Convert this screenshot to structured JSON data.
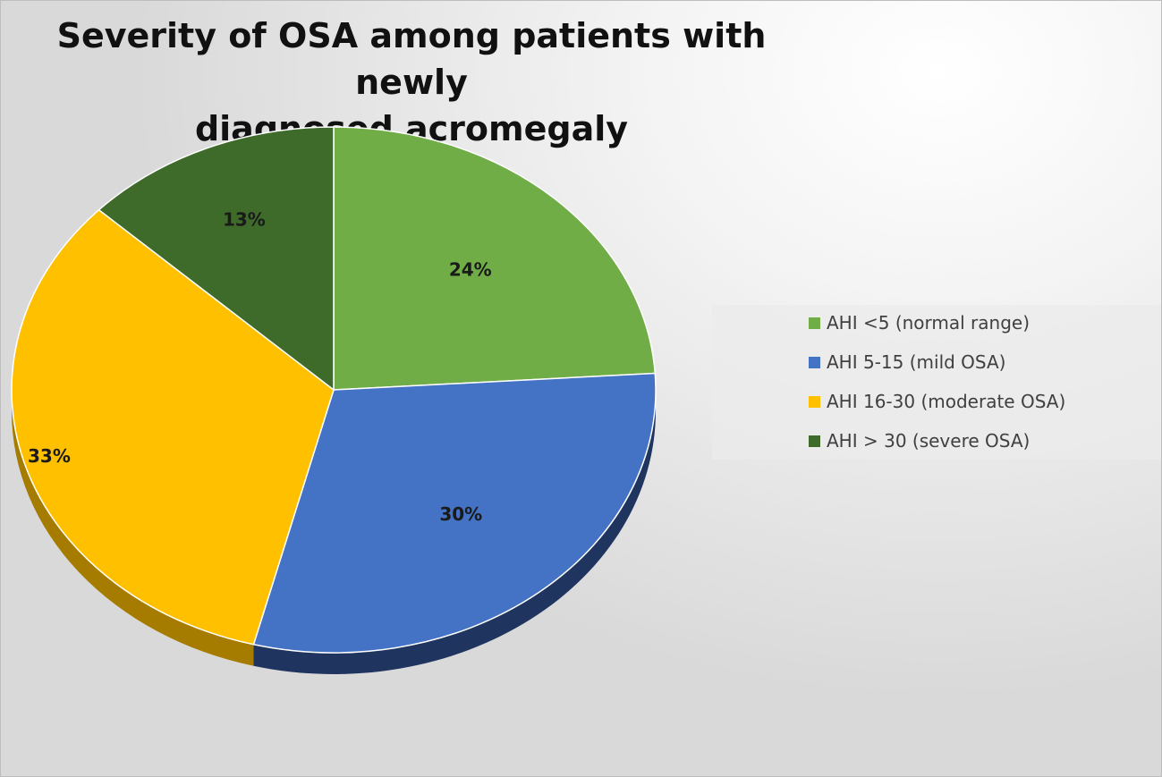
{
  "chart_data": {
    "type": "pie",
    "title": "Severity of OSA among patients with newly diagnosed acromegaly",
    "title_lines": [
      "Severity of OSA among patients with newly",
      "diagnosed acromegaly"
    ],
    "categories": [
      "AHI <5 (normal range)",
      "AHI 5-15 (mild OSA)",
      "AHI 16-30 (moderate OSA)",
      "AHI > 30 (severe OSA)"
    ],
    "values": [
      24,
      30,
      33,
      13
    ],
    "data_labels": [
      "24%",
      "30%",
      "33%",
      "13%"
    ],
    "colors": [
      "#70ad47",
      "#4472c4",
      "#ffc000",
      "#3f6b2a"
    ],
    "side_colors": [
      "#4e7d30",
      "#1f3560",
      "#a57b00",
      "#2a4a1c"
    ],
    "legend_position": "right",
    "style": "3d"
  }
}
